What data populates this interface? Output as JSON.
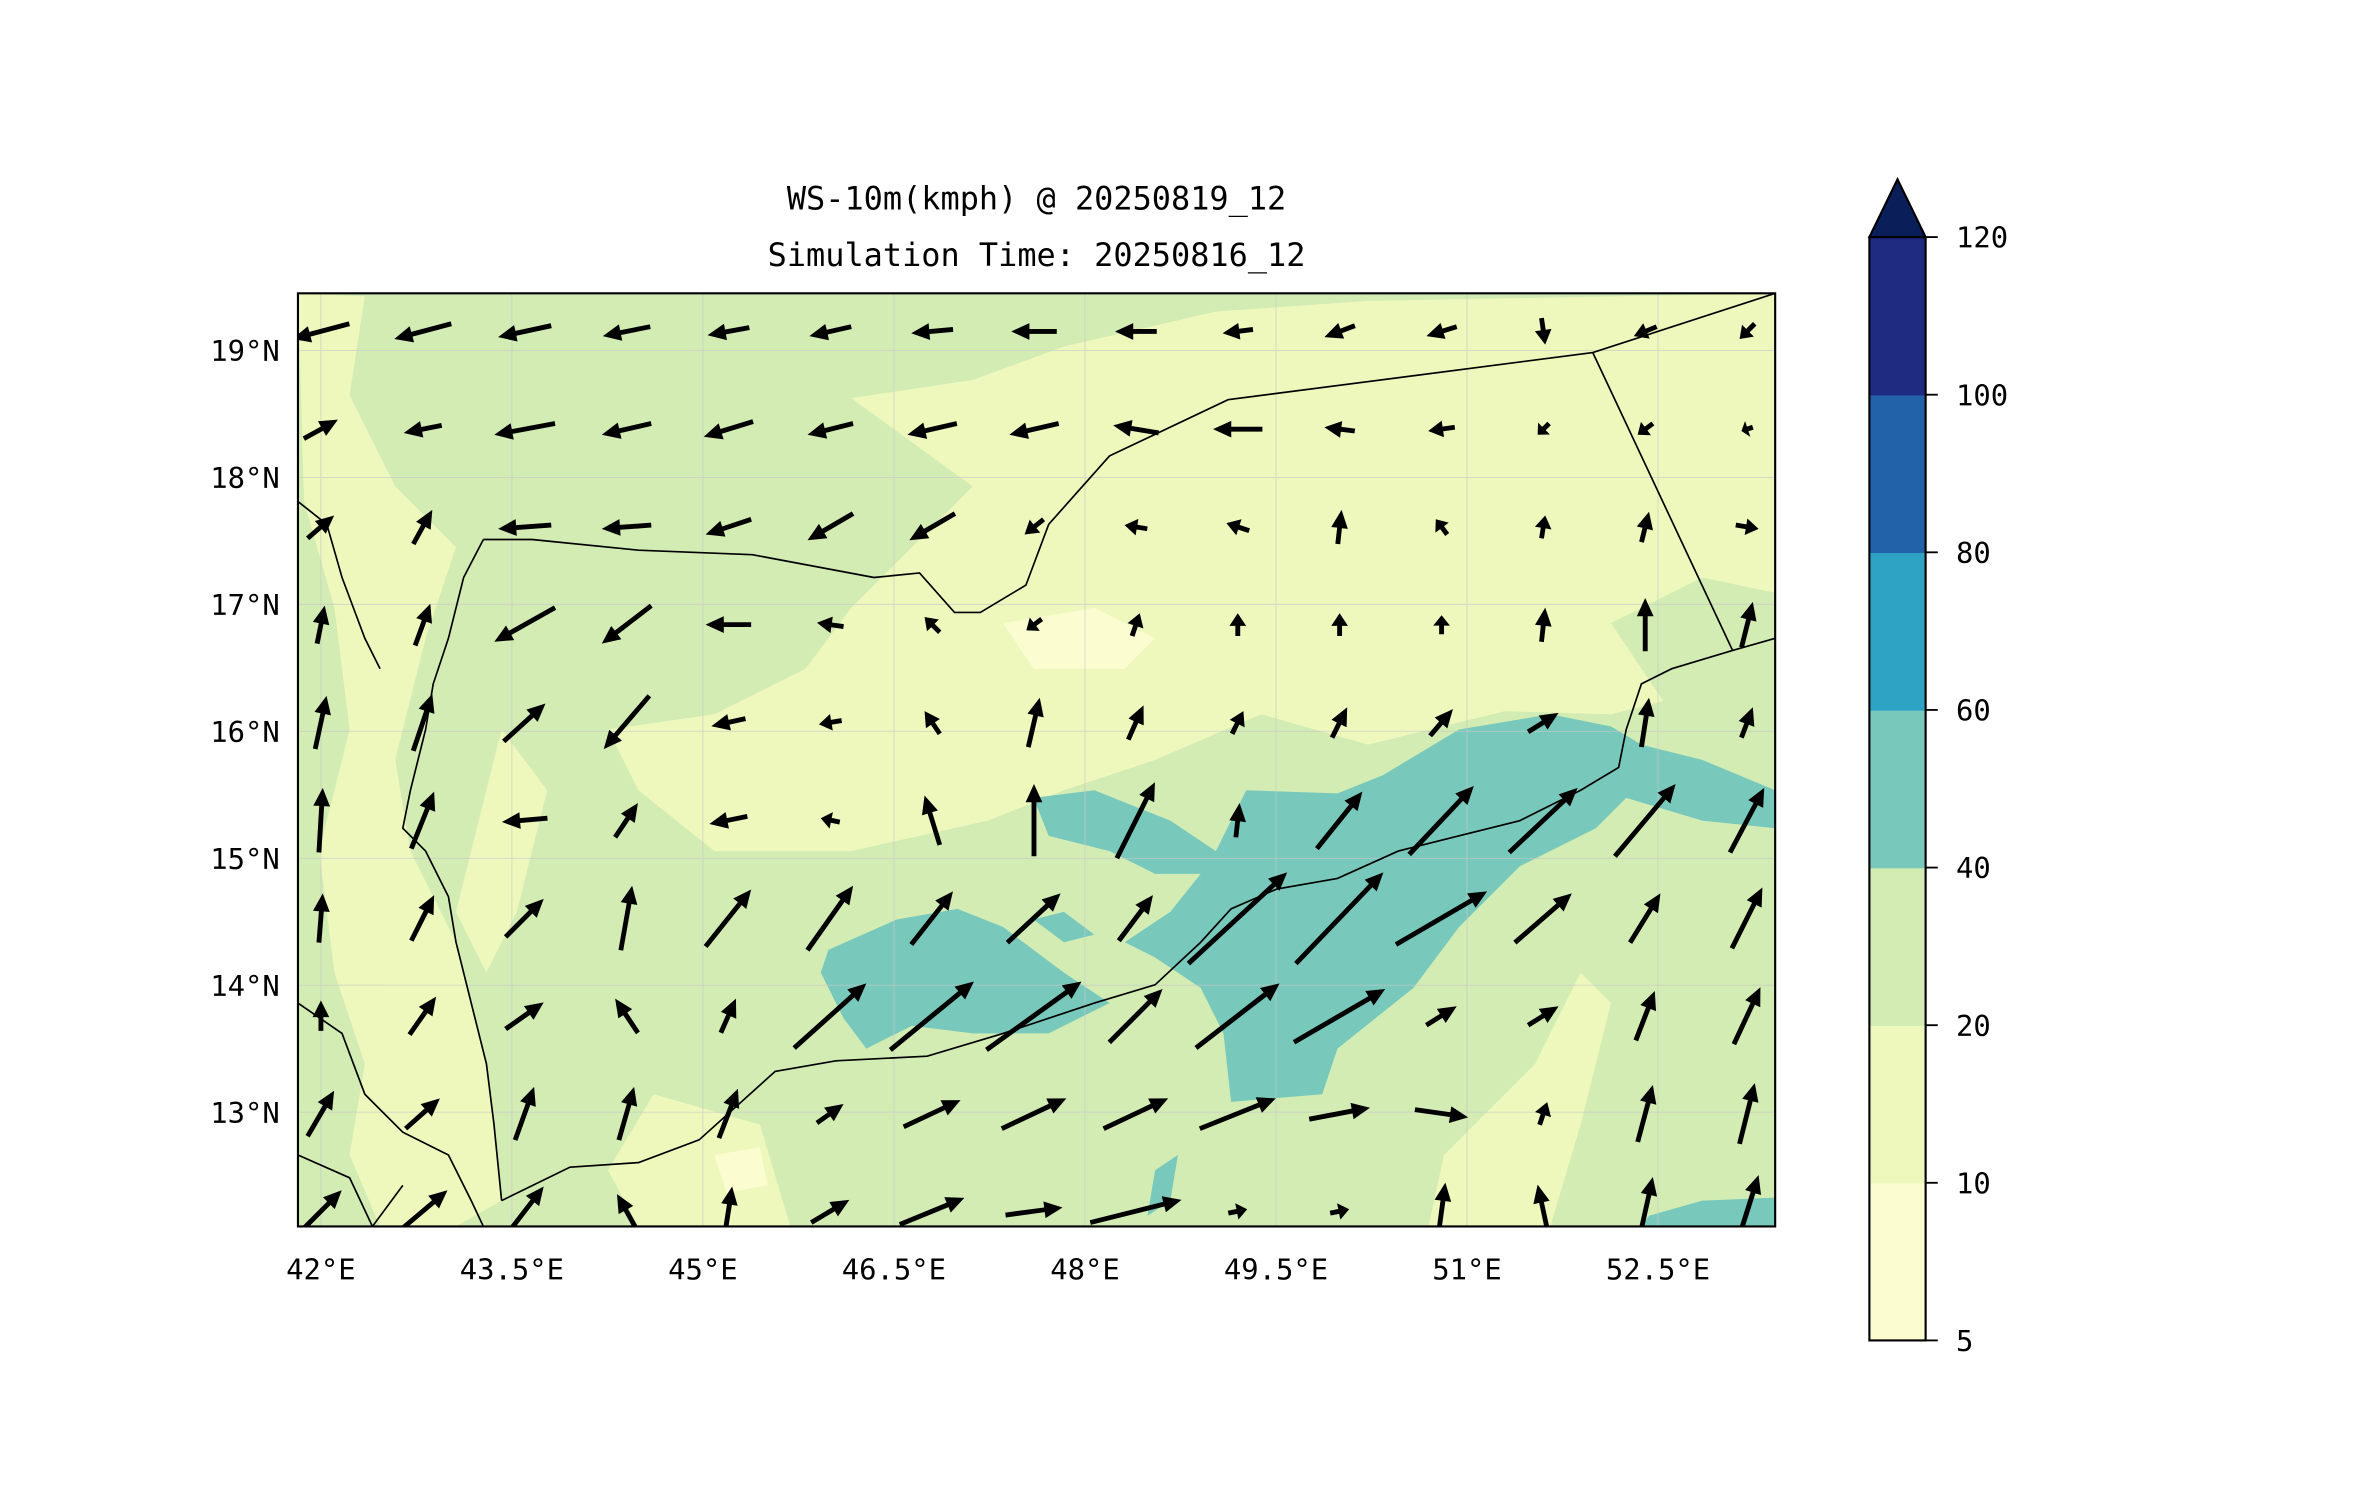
{
  "chart_data": {
    "type": "heatmap",
    "subtype": "filled-contour map with wind vectors",
    "title": [
      "WS-10m(kmph) @ 20250819_12",
      "Simulation Time: 20250816_12"
    ],
    "xlabel": "",
    "ylabel": "",
    "xlim": [
      41.82,
      53.42
    ],
    "ylim": [
      12.1,
      19.45
    ],
    "grid": true,
    "xticks": [
      42,
      43.5,
      45,
      46.5,
      48,
      49.5,
      51,
      52.5
    ],
    "xtick_labels": [
      "42°E",
      "43.5°E",
      "45°E",
      "46.5°E",
      "48°E",
      "49.5°E",
      "51°E",
      "52.5°E"
    ],
    "yticks": [
      13,
      14,
      15,
      16,
      17,
      18,
      19
    ],
    "ytick_labels": [
      "13°N",
      "14°N",
      "15°N",
      "16°N",
      "17°N",
      "18°N",
      "19°N"
    ],
    "colorbar": {
      "levels": [
        5,
        10,
        20,
        40,
        60,
        80,
        100,
        120
      ],
      "labels": [
        "5",
        "10",
        "20",
        "40",
        "60",
        "80",
        "100",
        "120"
      ],
      "colors": [
        "#fbfdd1",
        "#eef8bd",
        "#d2ecb4",
        "#78c9bb",
        "#2ea3c3",
        "#2262a9",
        "#1e2b80"
      ],
      "extend_color": "#0a1f5a",
      "extend": "max"
    },
    "vectors": {
      "lon_start": 42.0,
      "lon_step": 0.8,
      "lat_start": 19.15,
      "lat_step": -0.77,
      "units": "kmph",
      "uv_rows": [
        [
          [
            -30,
            -8
          ],
          [
            -30,
            -8
          ],
          [
            -28,
            -6
          ],
          [
            -25,
            -5
          ],
          [
            -22,
            -4
          ],
          [
            -22,
            -5
          ],
          [
            -22,
            -2
          ],
          [
            -24,
            0
          ],
          [
            -22,
            0
          ],
          [
            -16,
            -2
          ],
          [
            -16,
            -6
          ],
          [
            -16,
            -5
          ],
          [
            2,
            -14
          ],
          [
            -12,
            -5
          ],
          [
            -8,
            -8
          ]
        ],
        [
          [
            18,
            10
          ],
          [
            -20,
            -4
          ],
          [
            -32,
            -6
          ],
          [
            -26,
            -6
          ],
          [
            -26,
            -8
          ],
          [
            -24,
            -6
          ],
          [
            -26,
            -6
          ],
          [
            -26,
            -6
          ],
          [
            -24,
            4
          ],
          [
            -26,
            0
          ],
          [
            -16,
            2
          ],
          [
            -14,
            -2
          ],
          [
            -6,
            -6
          ],
          [
            -8,
            -6
          ],
          [
            -6,
            -2
          ]
        ],
        [
          [
            14,
            12
          ],
          [
            10,
            18
          ],
          [
            -28,
            -2
          ],
          [
            -26,
            -2
          ],
          [
            -24,
            -8
          ],
          [
            -24,
            -14
          ],
          [
            -24,
            -14
          ],
          [
            -10,
            -8
          ],
          [
            -12,
            2
          ],
          [
            -12,
            4
          ],
          [
            2,
            18
          ],
          [
            -6,
            8
          ],
          [
            2,
            12
          ],
          [
            4,
            16
          ],
          [
            12,
            -2
          ]
        ],
        [
          [
            4,
            20
          ],
          [
            8,
            22
          ],
          [
            -32,
            -18
          ],
          [
            -26,
            -20
          ],
          [
            -24,
            0
          ],
          [
            -14,
            2
          ],
          [
            -8,
            8
          ],
          [
            -8,
            -6
          ],
          [
            4,
            12
          ],
          [
            0,
            12
          ],
          [
            0,
            12
          ],
          [
            0,
            10
          ],
          [
            2,
            18
          ],
          [
            0,
            28
          ],
          [
            6,
            24
          ]
        ],
        [
          [
            6,
            28
          ],
          [
            10,
            30
          ],
          [
            22,
            20
          ],
          [
            -24,
            -28
          ],
          [
            -18,
            -4
          ],
          [
            -12,
            -2
          ],
          [
            -8,
            12
          ],
          [
            6,
            26
          ],
          [
            8,
            18
          ],
          [
            6,
            12
          ],
          [
            8,
            16
          ],
          [
            12,
            14
          ],
          [
            16,
            10
          ],
          [
            4,
            26
          ],
          [
            6,
            16
          ]
        ],
        [
          [
            2,
            34
          ],
          [
            12,
            30
          ],
          [
            -24,
            -2
          ],
          [
            12,
            18
          ],
          [
            -20,
            -4
          ],
          [
            -10,
            2
          ],
          [
            -8,
            26
          ],
          [
            0,
            38
          ],
          [
            20,
            40
          ],
          [
            2,
            18
          ],
          [
            24,
            30
          ],
          [
            34,
            36
          ],
          [
            36,
            34
          ],
          [
            32,
            38
          ],
          [
            18,
            34
          ]
        ],
        [
          [
            2,
            26
          ],
          [
            12,
            24
          ],
          [
            20,
            20
          ],
          [
            6,
            34
          ],
          [
            24,
            30
          ],
          [
            24,
            34
          ],
          [
            22,
            28
          ],
          [
            28,
            26
          ],
          [
            18,
            24
          ],
          [
            52,
            48
          ],
          [
            46,
            48
          ],
          [
            48,
            28
          ],
          [
            30,
            26
          ],
          [
            16,
            26
          ],
          [
            16,
            32
          ]
        ],
        [
          [
            0,
            16
          ],
          [
            14,
            20
          ],
          [
            20,
            14
          ],
          [
            -12,
            18
          ],
          [
            8,
            18
          ],
          [
            38,
            34
          ],
          [
            44,
            36
          ],
          [
            50,
            36
          ],
          [
            28,
            28
          ],
          [
            44,
            34
          ],
          [
            48,
            28
          ],
          [
            16,
            10
          ],
          [
            16,
            10
          ],
          [
            10,
            26
          ],
          [
            14,
            30
          ]
        ],
        [
          [
            14,
            24
          ],
          [
            18,
            16
          ],
          [
            10,
            28
          ],
          [
            8,
            28
          ],
          [
            10,
            26
          ],
          [
            14,
            10
          ],
          [
            30,
            14
          ],
          [
            34,
            16
          ],
          [
            34,
            16
          ],
          [
            40,
            16
          ],
          [
            32,
            6
          ],
          [
            28,
            -4
          ],
          [
            4,
            12
          ],
          [
            8,
            30
          ],
          [
            8,
            32
          ]
        ],
        [
          [
            22,
            22
          ],
          [
            26,
            22
          ],
          [
            20,
            26
          ],
          [
            -10,
            18
          ],
          [
            4,
            26
          ],
          [
            20,
            12
          ],
          [
            34,
            14
          ],
          [
            30,
            4
          ],
          [
            48,
            12
          ],
          [
            10,
            2
          ],
          [
            10,
            2
          ],
          [
            4,
            30
          ],
          [
            -6,
            28
          ],
          [
            8,
            36
          ],
          [
            12,
            38
          ]
        ]
      ]
    }
  }
}
